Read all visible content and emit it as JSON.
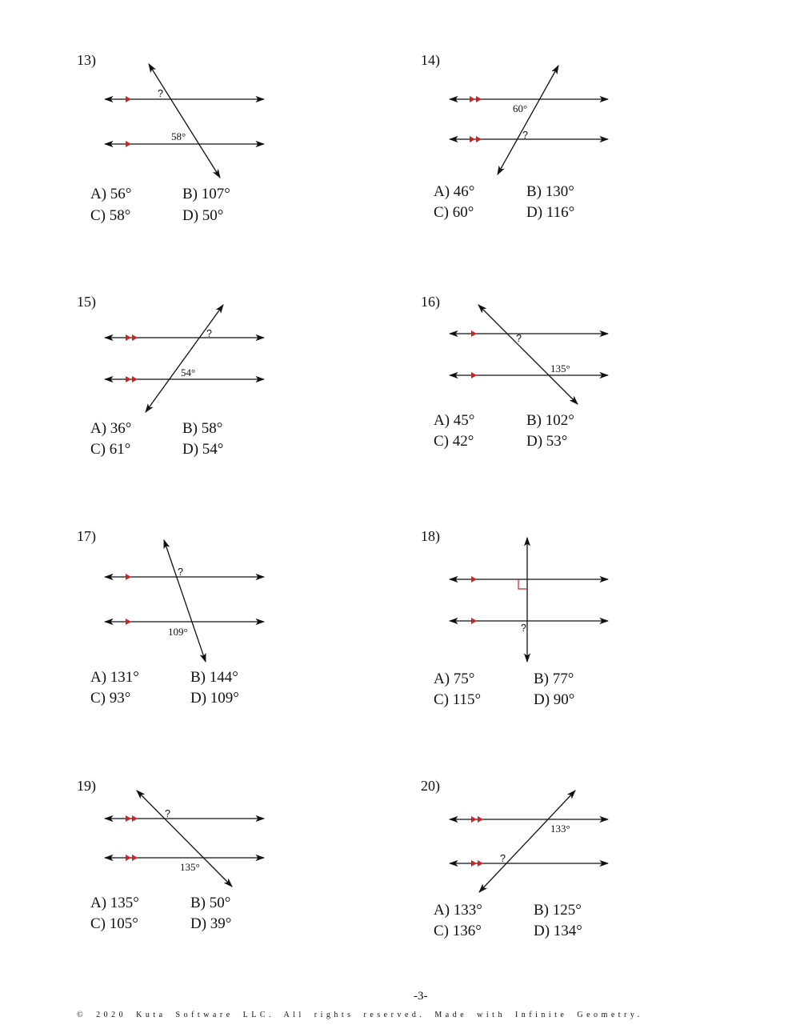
{
  "problems": [
    {
      "number": "13)",
      "unknown": "?",
      "given": "58°",
      "choices": {
        "A": "A)  56°",
        "B": "B)  107°",
        "C": "C)  58°",
        "D": "D)  50°"
      }
    },
    {
      "number": "14)",
      "unknown": "?",
      "given": "60°",
      "choices": {
        "A": "A)  46°",
        "B": "B)  130°",
        "C": "C)  60°",
        "D": "D)  116°"
      }
    },
    {
      "number": "15)",
      "unknown": "?",
      "given": "54°",
      "choices": {
        "A": "A)  36°",
        "B": "B)  58°",
        "C": "C)  61°",
        "D": "D)  54°"
      }
    },
    {
      "number": "16)",
      "unknown": "?",
      "given": "135°",
      "choices": {
        "A": "A)  45°",
        "B": "B)  102°",
        "C": "C)  42°",
        "D": "D)  53°"
      }
    },
    {
      "number": "17)",
      "unknown": "?",
      "given": "109°",
      "choices": {
        "A": "A)  131°",
        "B": "B)  144°",
        "C": "C)  93°",
        "D": "D)  109°"
      }
    },
    {
      "number": "18)",
      "unknown": "?",
      "given": "",
      "choices": {
        "A": "A)  75°",
        "B": "B)  77°",
        "C": "C)  115°",
        "D": "D)  90°"
      }
    },
    {
      "number": "19)",
      "unknown": "?",
      "given": "135°",
      "choices": {
        "A": "A)  135°",
        "B": "B)  50°",
        "C": "C)  105°",
        "D": "D)  39°"
      }
    },
    {
      "number": "20)",
      "unknown": "?",
      "given": "133°",
      "choices": {
        "A": "A)  133°",
        "B": "B)  125°",
        "C": "C)  136°",
        "D": "D)  134°"
      }
    }
  ],
  "colors": {
    "parallel_marker": "#d42020",
    "line": "#111111"
  },
  "footer": {
    "copyright": "© 2020 Kuta Software LLC.  All rights reserved.  Made with Infinite Geometry.",
    "page_number": "-3-"
  }
}
